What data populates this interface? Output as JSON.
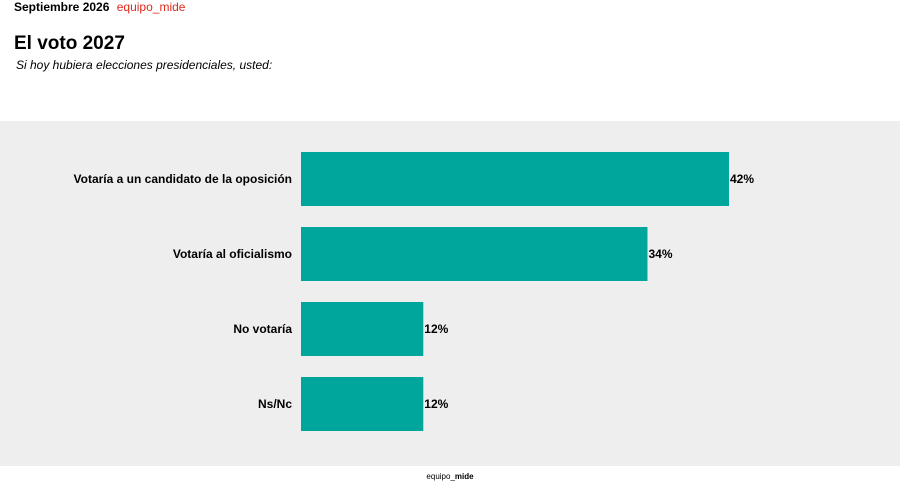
{
  "header": {
    "date": "Septiembre 2026",
    "brand": "equipo_mide"
  },
  "title": "El voto 2027",
  "subtitle": "Si hoy hubiera elecciones presidenciales, usted:",
  "footer": {
    "prefix": "equipo_",
    "strong": "mide"
  },
  "colors": {
    "bar": "#00a69c",
    "background_panel": "#eeeeee",
    "brand": "#e0281c"
  },
  "chart_data": {
    "type": "bar",
    "orientation": "horizontal",
    "categories": [
      "Votaría a un candidato de la oposición",
      "Votaría al oficialismo",
      "No votaría",
      "Ns/Nc"
    ],
    "values": [
      42,
      34,
      12,
      12
    ],
    "value_suffix": "%",
    "grid": false,
    "legend": "none"
  }
}
